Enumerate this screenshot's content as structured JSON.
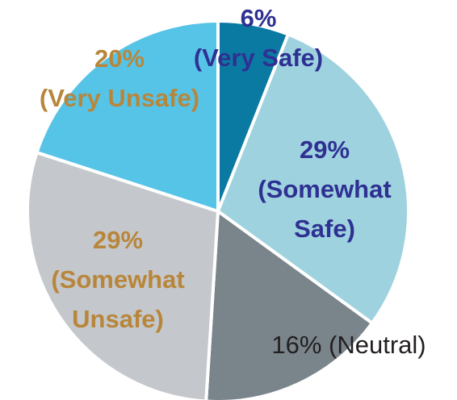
{
  "chart_data": {
    "type": "pie",
    "categories": [
      "(Very Safe)",
      "(Somewhat Safe)",
      "(Neutral)",
      "(Somewhat Unsafe)",
      "(Very Unsafe)"
    ],
    "values": [
      6,
      29,
      16,
      29,
      20
    ],
    "value_labels": [
      "6%",
      "29%",
      "16%",
      "29%",
      "20%"
    ],
    "colors": [
      "#0b7aa3",
      "#9fd2df",
      "#7a858b",
      "#c4c7cb",
      "#56c4e7"
    ],
    "label_colors": [
      "#2e3192",
      "#2e3192",
      "#231f20",
      "#b8863b",
      "#b8863b"
    ]
  }
}
